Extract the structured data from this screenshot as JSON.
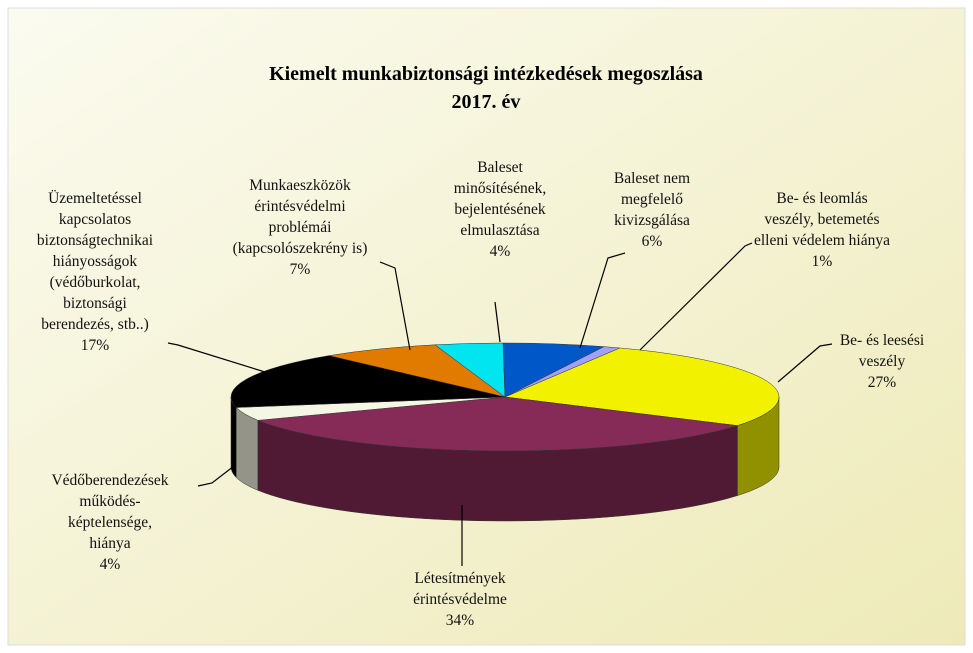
{
  "chart_data": {
    "type": "pie3d",
    "title": "Kiemelt munkabiztonsági intézkedések megoszlása",
    "subtitle": "2017. év",
    "categories": [
      "Munkaeszközök érintésvédelmi problémái (kapcsolószekrény is)",
      "Baleset minősítésének, bejelentésének elmulasztása",
      "Baleset nem megfelelő kivizsgálása",
      "Be- és leomlás veszély, betemetés elleni védelem hiánya",
      "Be- és leesési veszély",
      "Létesítmények érintésvédelme",
      "Védőberendezések működés-képtelensége, hiánya",
      "Üzemeltetéssel kapcsolatos biztonságtechnikai hiányosságok (védőburkolat, biztonsági berendezés, stb..)"
    ],
    "values": [
      7,
      4,
      6,
      1,
      27,
      34,
      4,
      17
    ],
    "value_labels": [
      "7%",
      "4%",
      "6%",
      "1%",
      "27%",
      "34%",
      "4%",
      "17%"
    ],
    "colors": [
      "#e07b00",
      "#00e5f0",
      "#0057c8",
      "#a0a0ff",
      "#f2f200",
      "#862b57",
      "#f6f6e4",
      "#000000"
    ]
  }
}
